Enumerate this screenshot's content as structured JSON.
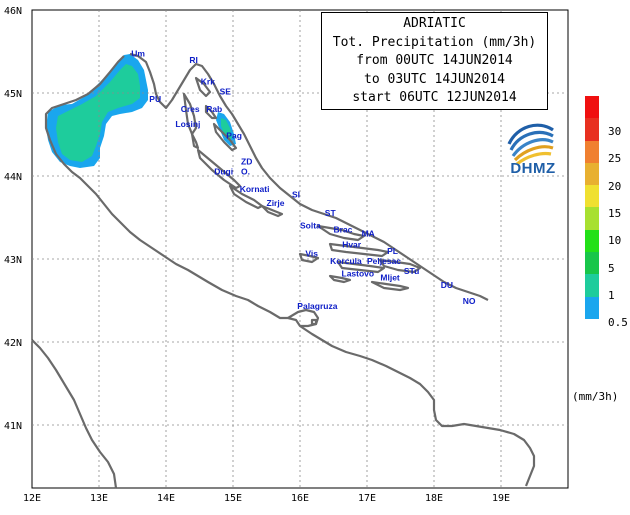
{
  "title_lines": [
    "ADRIATIC",
    "Tot. Precipitation (mm/3h)",
    "from 00UTC 14JUN2014",
    "to 03UTC 14JUN2014",
    "start 06UTC 12JUN2014"
  ],
  "logo_text": "DHMZ",
  "lon_labels": [
    "12E",
    "13E",
    "14E",
    "15E",
    "16E",
    "17E",
    "18E",
    "19E"
  ],
  "lat_labels": [
    "46N",
    "45N",
    "44N",
    "43N",
    "42N",
    "41N"
  ],
  "places": [
    {
      "name": "Um",
      "lon": 13.48,
      "lat": 45.44
    },
    {
      "name": "RI",
      "lon": 14.35,
      "lat": 45.36
    },
    {
      "name": "Krk",
      "lon": 14.52,
      "lat": 45.1
    },
    {
      "name": "SE",
      "lon": 14.8,
      "lat": 44.98
    },
    {
      "name": "PU",
      "lon": 13.75,
      "lat": 44.89
    },
    {
      "name": "Cres",
      "lon": 14.22,
      "lat": 44.77
    },
    {
      "name": "Rab",
      "lon": 14.6,
      "lat": 44.77
    },
    {
      "name": "Losinj",
      "lon": 14.14,
      "lat": 44.59
    },
    {
      "name": "Pag",
      "lon": 14.9,
      "lat": 44.45
    },
    {
      "name": "ZD",
      "lon": 15.12,
      "lat": 44.14
    },
    {
      "name": "Dugi",
      "lon": 14.72,
      "lat": 44.02
    },
    {
      "name": "O.",
      "lon": 15.12,
      "lat": 44.02
    },
    {
      "name": "Kornati",
      "lon": 15.1,
      "lat": 43.81
    },
    {
      "name": "SI",
      "lon": 15.88,
      "lat": 43.74
    },
    {
      "name": "Zirje",
      "lon": 15.5,
      "lat": 43.64
    },
    {
      "name": "ST",
      "lon": 16.37,
      "lat": 43.52
    },
    {
      "name": "Solta",
      "lon": 16.0,
      "lat": 43.37
    },
    {
      "name": "Brac",
      "lon": 16.5,
      "lat": 43.32
    },
    {
      "name": "MA",
      "lon": 16.92,
      "lat": 43.27
    },
    {
      "name": "Hvar",
      "lon": 16.63,
      "lat": 43.14
    },
    {
      "name": "PL",
      "lon": 17.3,
      "lat": 43.06
    },
    {
      "name": "Vis",
      "lon": 16.08,
      "lat": 43.03
    },
    {
      "name": "Korcula",
      "lon": 16.45,
      "lat": 42.94
    },
    {
      "name": "Peljesac",
      "lon": 17.0,
      "lat": 42.94
    },
    {
      "name": "STu",
      "lon": 17.55,
      "lat": 42.82
    },
    {
      "name": "Lastovo",
      "lon": 16.62,
      "lat": 42.79
    },
    {
      "name": "Mljet",
      "lon": 17.2,
      "lat": 42.74
    },
    {
      "name": "DU",
      "lon": 18.1,
      "lat": 42.65
    },
    {
      "name": "NO",
      "lon": 18.43,
      "lat": 42.46
    },
    {
      "name": "Palagruza",
      "lon": 15.96,
      "lat": 42.4
    }
  ],
  "precip_scale": [
    {
      "label": "0.5",
      "color": "#1aa6ee"
    },
    {
      "label": "1",
      "color": "#1ecc9c"
    },
    {
      "label": "5",
      "color": "#18c64a"
    },
    {
      "label": "10",
      "color": "#22e018"
    },
    {
      "label": "15",
      "color": "#a8e030"
    },
    {
      "label": "20",
      "color": "#f0e030"
    },
    {
      "label": "25",
      "color": "#e8b030"
    },
    {
      "label": "30",
      "color": "#f08030"
    },
    {
      "label": "",
      "color": "#e83020"
    },
    {
      "label": "",
      "color": "#f01010"
    }
  ],
  "scale_labels": [
    "30",
    "25",
    "20",
    "15",
    "10",
    "5",
    "1",
    "0.5"
  ],
  "units_label": "(mm/3h)",
  "colors": {
    "coast": "#6a6a6a",
    "grid": "#8a8a8a",
    "place_text": "#1020c8",
    "precip_light": "#1aa6ee",
    "precip_1": "#1ecc9c",
    "logo": "#1f5fa8"
  }
}
